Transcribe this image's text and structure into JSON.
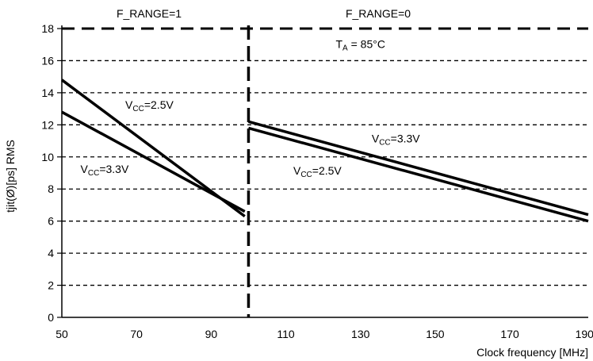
{
  "chart_data": {
    "type": "line",
    "title": "",
    "xlabel": "Clock frequency [MHz]",
    "ylabel": "tjit(Ø)[ps] RMS",
    "xlim": [
      50,
      191
    ],
    "ylim": [
      0,
      18
    ],
    "x_ticks": [
      50,
      70,
      90,
      110,
      130,
      150,
      170,
      190
    ],
    "y_ticks": [
      0,
      2,
      4,
      6,
      8,
      10,
      12,
      14,
      16,
      18
    ],
    "grid": "horizontal dashed",
    "regions": [
      {
        "label": "F_RANGE=1",
        "x_range": [
          50,
          100
        ]
      },
      {
        "label": "F_RANGE=0",
        "x_range": [
          100,
          191
        ]
      }
    ],
    "annotations": [
      {
        "text_main": "T",
        "text_sub": "A",
        "text_rest": " = 85°C",
        "x": 130,
        "y": 16.8
      }
    ],
    "series": [
      {
        "name": "VCC=2.5V",
        "label_main": "V",
        "label_sub": "CC",
        "label_rest": "=2.5V",
        "x": [
          50,
          99
        ],
        "y": [
          14.8,
          6.3
        ],
        "label_at": [
          67,
          13.0
        ]
      },
      {
        "name": "VCC=3.3V",
        "label_main": "V",
        "label_sub": "CC",
        "label_rest": "=3.3V",
        "x": [
          50,
          99
        ],
        "y": [
          12.8,
          6.6
        ],
        "label_at": [
          55,
          9.0
        ]
      },
      {
        "name": "VCC=3.3V",
        "label_main": "V",
        "label_sub": "CC",
        "label_rest": "=3.3V",
        "x": [
          100,
          191
        ],
        "y": [
          12.2,
          6.4
        ],
        "label_at": [
          133,
          10.9
        ]
      },
      {
        "name": "VCC=2.5V",
        "label_main": "V",
        "label_sub": "CC",
        "label_rest": "=2.5V",
        "x": [
          100,
          191
        ],
        "y": [
          11.8,
          6.0
        ],
        "label_at": [
          112,
          8.9
        ]
      }
    ]
  }
}
